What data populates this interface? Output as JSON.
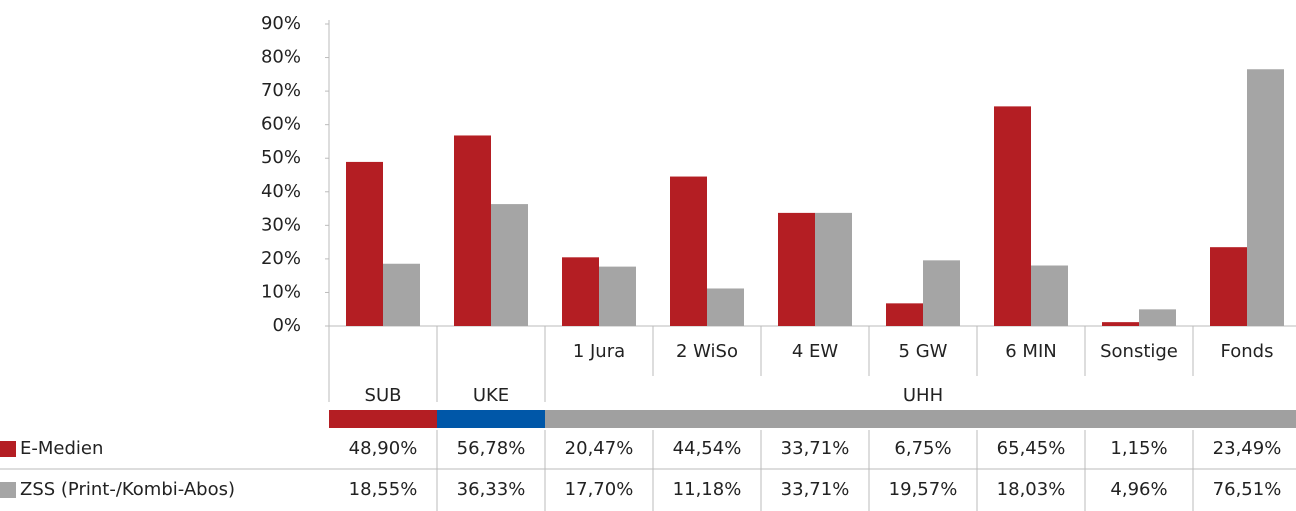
{
  "chart_data": {
    "type": "bar",
    "categories": [
      null,
      null,
      "1 Jura",
      "2 WiSo",
      "4 EW",
      "5 GW",
      "6 MIN",
      "Sonstige",
      "Fonds"
    ],
    "groups": [
      {
        "label": "SUB",
        "color": "#b41e23",
        "span": 1
      },
      {
        "label": "UKE",
        "color": "#0057a8",
        "span": 1
      },
      {
        "label": "UHH",
        "color": "#a0a0a0",
        "span": 7
      }
    ],
    "series": [
      {
        "name": "E-Medien",
        "color": "#b41e23",
        "values": [
          48.9,
          56.78,
          20.47,
          44.54,
          33.71,
          6.75,
          65.45,
          1.15,
          23.49
        ],
        "value_labels": [
          "48,90%",
          "56,78%",
          "20,47%",
          "44,54%",
          "33,71%",
          "6,75%",
          "65,45%",
          "1,15%",
          "23,49%"
        ]
      },
      {
        "name": "ZSS (Print-/Kombi-Abos)",
        "color": "#a5a5a5",
        "values": [
          18.55,
          36.33,
          17.7,
          11.18,
          33.71,
          19.57,
          18.03,
          4.96,
          76.51
        ],
        "value_labels": [
          "18,55%",
          "36,33%",
          "17,70%",
          "11,18%",
          "33,71%",
          "19,57%",
          "18,03%",
          "4,96%",
          "76,51%"
        ]
      }
    ],
    "ylim": [
      0,
      90
    ],
    "yticks": [
      {
        "value": 0,
        "label": "0%"
      },
      {
        "value": 10,
        "label": "10%"
      },
      {
        "value": 20,
        "label": "20%"
      },
      {
        "value": 30,
        "label": "30%"
      },
      {
        "value": 40,
        "label": "40%"
      },
      {
        "value": 50,
        "label": "50%"
      },
      {
        "value": 60,
        "label": "60%"
      },
      {
        "value": 70,
        "label": "70%"
      },
      {
        "value": 80,
        "label": "80%"
      },
      {
        "value": 90,
        "label": "90%"
      }
    ]
  }
}
